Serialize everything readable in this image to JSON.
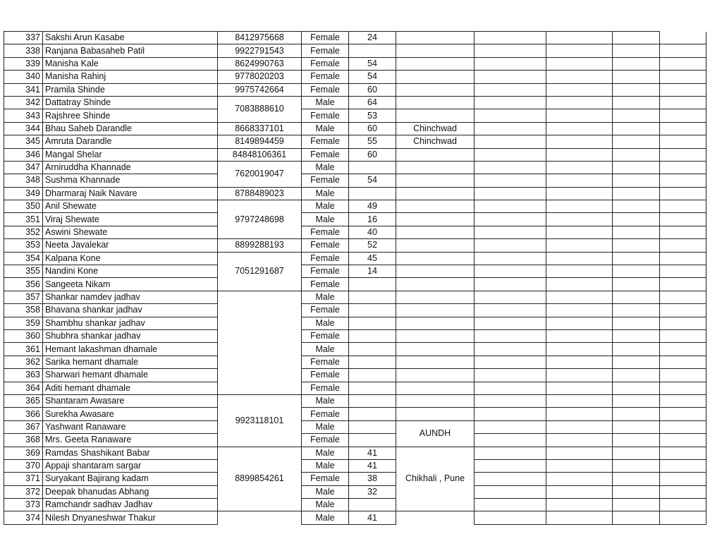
{
  "rows": [
    {
      "no": "337",
      "name": "Sakshi Arun Kasabe",
      "phone": "8412975668",
      "phone_span": 1,
      "gender": "Female",
      "age": "24",
      "place": "",
      "place_span": 1
    },
    {
      "no": "338",
      "name": "Ranjana Babasaheb Patil",
      "phone": "9922791543",
      "phone_span": 1,
      "gender": "Female",
      "age": "",
      "place": "",
      "place_span": 1
    },
    {
      "no": "339",
      "name": "Manisha Kale",
      "phone": "8624990763",
      "phone_span": 1,
      "gender": "Female",
      "age": "54",
      "place": "",
      "place_span": 1
    },
    {
      "no": "340",
      "name": "Manisha Rahinj",
      "phone": "9778020203",
      "phone_span": 1,
      "gender": "Female",
      "age": "54",
      "place": "",
      "place_span": 1
    },
    {
      "no": "341",
      "name": "Pramila Shinde",
      "phone": "9975742664",
      "phone_span": 1,
      "gender": "Female",
      "age": "60",
      "place": "",
      "place_span": 1
    },
    {
      "no": "342",
      "name": "Dattatray Shinde",
      "phone": "7083888610",
      "phone_span": 2,
      "gender": "Male",
      "age": "64",
      "place": "",
      "place_span": 1
    },
    {
      "no": "343",
      "name": "Rajshree Shinde",
      "gender": "Female",
      "age": "53",
      "place": "",
      "place_span": 1
    },
    {
      "no": "344",
      "name": "Bhau Saheb Darandle",
      "phone": "8668337101",
      "phone_span": 1,
      "gender": "Male",
      "age": "60",
      "place": "Chinchwad",
      "place_span": 1
    },
    {
      "no": "345",
      "name": "Amruta Darandle",
      "phone": "8149894459",
      "phone_span": 1,
      "gender": "Female",
      "age": "55",
      "place": "Chinchwad",
      "place_span": 1
    },
    {
      "no": "346",
      "name": "Mangal Shelar",
      "phone": "84848106361",
      "phone_span": 1,
      "gender": "Female",
      "age": "60",
      "place": "",
      "place_span": 1
    },
    {
      "no": "347",
      "name": "Arniruddha Khannade",
      "phone": "7620019047",
      "phone_span": 2,
      "gender": "Male",
      "age": "",
      "place": "",
      "place_span": 1
    },
    {
      "no": "348",
      "name": "Sushma Khannade",
      "gender": "Female",
      "age": "54",
      "place": "",
      "place_span": 1
    },
    {
      "no": "349",
      "name": "Dharmaraj Naik Navare",
      "phone": "8788489023",
      "phone_span": 1,
      "gender": "Male",
      "age": "",
      "place": "",
      "place_span": 1
    },
    {
      "no": "350",
      "name": "Anil Shewate",
      "phone": "9797248698",
      "phone_span": 3,
      "gender": "Male",
      "age": "49",
      "place": "",
      "place_span": 1
    },
    {
      "no": "351",
      "name": "Viraj Shewate",
      "gender": "Male",
      "age": "16",
      "place": "",
      "place_span": 1
    },
    {
      "no": "352",
      "name": "Aswini Shewate",
      "gender": "Female",
      "age": "40",
      "place": "",
      "place_span": 1
    },
    {
      "no": "353",
      "name": "Neeta Javalekar",
      "phone": "8899288193",
      "phone_span": 1,
      "gender": "Female",
      "age": "52",
      "place": "",
      "place_span": 1
    },
    {
      "no": "354",
      "name": "Kalpana Kone",
      "phone": "7051291687",
      "phone_span": 3,
      "gender": "Female",
      "age": "45",
      "place": "",
      "place_span": 1
    },
    {
      "no": "355",
      "name": "Nandini Kone",
      "gender": "Female",
      "age": "14",
      "place": "",
      "place_span": 1
    },
    {
      "no": "356",
      "name": "Sangeeta Nikam",
      "gender": "Female",
      "age": "",
      "place": "",
      "place_span": 1
    },
    {
      "no": "357",
      "name": "Shankar namdev jadhav",
      "phone": "",
      "phone_span": 8,
      "gender": "Male",
      "age": "",
      "place": "",
      "place_span": 1
    },
    {
      "no": "358",
      "name": "Bhavana shankar jadhav",
      "gender": "Female",
      "age": "",
      "place": "",
      "place_span": 1
    },
    {
      "no": "359",
      "name": "Shambhu shankar jadhav",
      "gender": "Male",
      "age": "",
      "place": "",
      "place_span": 1
    },
    {
      "no": "360",
      "name": "Shubhra shankar jadhav",
      "gender": "Female",
      "age": "",
      "place": "",
      "place_span": 1
    },
    {
      "no": "361",
      "name": "Hemant lakashman dhamale",
      "gender": "Male",
      "age": "",
      "place": "",
      "place_span": 1
    },
    {
      "no": "362",
      "name": "Sarika hemant dhamale",
      "gender": "Female",
      "age": "",
      "place": "",
      "place_span": 1
    },
    {
      "no": "363",
      "name": "Sharwari hemant dhamale",
      "gender": "Female",
      "age": "",
      "place": "",
      "place_span": 1
    },
    {
      "no": "364",
      "name": "Aditi hemant dhamale",
      "gender": "Female",
      "age": "",
      "place": "",
      "place_span": 1
    },
    {
      "no": "365",
      "name": "Shantaram Awasare",
      "phone": "9923118101",
      "phone_span": 4,
      "gender": "Male",
      "age": "",
      "place": "",
      "place_span": 1
    },
    {
      "no": "366",
      "name": "Surekha Awasare",
      "gender": "Female",
      "age": "",
      "place": "",
      "place_span": 1
    },
    {
      "no": "367",
      "name": "Yashwant Ranaware",
      "gender": "Male",
      "age": "",
      "place": "AUNDH",
      "place_span": 2
    },
    {
      "no": "368",
      "name": "Mrs. Geeta Ranaware",
      "gender": "Female",
      "age": ""
    },
    {
      "no": "369",
      "name": "Ramdas Shashikant Babar",
      "phone": "8899854261",
      "phone_span": 5,
      "gender": "Male",
      "age": "41",
      "place": "Chikhali , Pune",
      "place_span": 5
    },
    {
      "no": "370",
      "name": "Appaji shantaram sargar",
      "gender": "Male",
      "age": "41"
    },
    {
      "no": "371",
      "name": "Suryakant Bajirang kadam",
      "gender": "Female",
      "age": "38"
    },
    {
      "no": "372",
      "name": "Deepak bhanudas Abhang",
      "gender": "Male",
      "age": "32"
    },
    {
      "no": "373",
      "name": "Ramchandr sadhav Jadhav",
      "gender": "Male",
      "age": ""
    },
    {
      "no": "374",
      "name": "Nilesh Dnyaneshwar Thakur",
      "phone": "",
      "phone_span": 1,
      "phone_open": true,
      "gender": "Male",
      "age": "41",
      "place": "",
      "place_span": 1,
      "place_open": true
    }
  ]
}
